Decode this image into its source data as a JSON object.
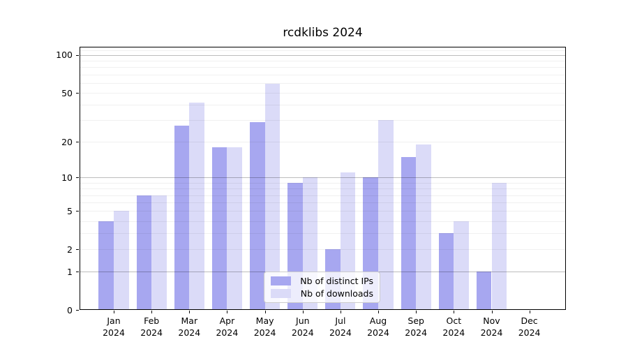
{
  "chart_data": {
    "type": "bar",
    "title": "rcdklibs 2024",
    "months": [
      "Jan",
      "Feb",
      "Mar",
      "Apr",
      "May",
      "Jun",
      "Jul",
      "Aug",
      "Sep",
      "Oct",
      "Nov",
      "Dec"
    ],
    "year": "2024",
    "categories": [
      "Jan 2024",
      "Feb 2024",
      "Mar 2024",
      "Apr 2024",
      "May 2024",
      "Jun 2024",
      "Jul 2024",
      "Aug 2024",
      "Sep 2024",
      "Oct 2024",
      "Nov 2024",
      "Dec 2024"
    ],
    "series": [
      {
        "name": "Nb of distinct IPs",
        "color": "#a7a7f0",
        "values": [
          4,
          7,
          27,
          18,
          29,
          9,
          2,
          10,
          15,
          3,
          1,
          0
        ]
      },
      {
        "name": "Nb of downloads",
        "color": "#dbdbf8",
        "values": [
          5,
          7,
          42,
          18,
          59,
          10,
          11,
          30,
          19,
          4,
          9,
          0
        ]
      }
    ],
    "y_axis": {
      "scale": "log1p",
      "ticks": [
        0,
        1,
        2,
        5,
        10,
        20,
        50,
        100
      ],
      "major_gridlines": [
        1,
        10,
        100
      ],
      "minor_gridlines": [
        2,
        3,
        4,
        5,
        6,
        7,
        8,
        9,
        20,
        30,
        40,
        50,
        60,
        70,
        80,
        90,
        110
      ],
      "range": [
        0,
        117
      ],
      "grid": true
    },
    "legend": {
      "position": "lower center",
      "frame": true
    },
    "colors": {
      "distinct_ips": "#a7a7f0",
      "downloads": "#dbdbf8",
      "major_grid": "#bdbdbd",
      "minor_grid": "#f0f0f0",
      "spine": "#000000"
    }
  }
}
